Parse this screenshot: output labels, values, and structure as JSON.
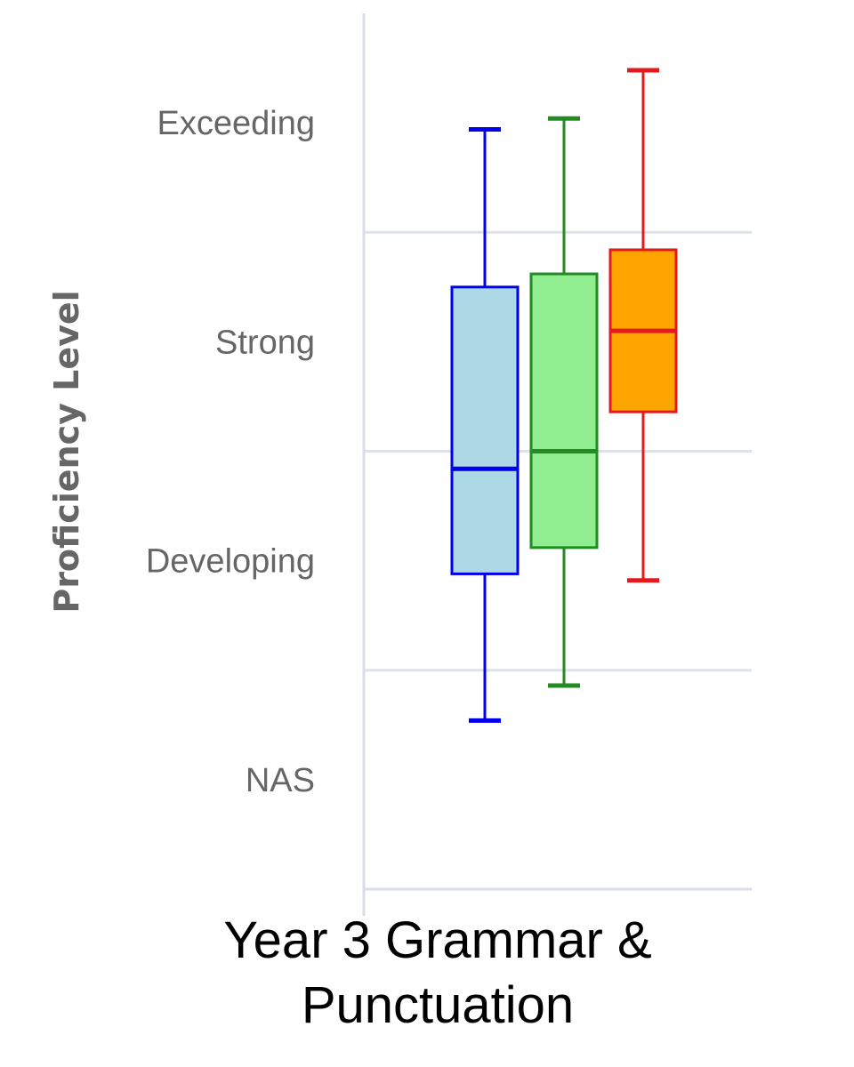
{
  "chart_data": {
    "type": "boxplot",
    "title_lines": [
      "Year 3 Grammar &",
      "Punctuation"
    ],
    "ylabel": "Proficiency Level",
    "y_categories": [
      "NAS",
      "Developing",
      "Strong",
      "Exceeding"
    ],
    "ylim": [
      0,
      4
    ],
    "gridlines": [
      1,
      2,
      3
    ],
    "series": [
      {
        "whisker_low": 0.77,
        "q1": 1.44,
        "median": 1.92,
        "q3": 2.75,
        "whisker_high": 3.47,
        "fill": "#add8e6",
        "stroke": "#0000ee"
      },
      {
        "whisker_low": 0.93,
        "q1": 1.56,
        "median": 2.0,
        "q3": 2.81,
        "whisker_high": 3.52,
        "fill": "#90ee90",
        "stroke": "#228b22"
      },
      {
        "whisker_low": 1.41,
        "q1": 2.18,
        "median": 2.55,
        "q3": 2.92,
        "whisker_high": 3.74,
        "fill": "#ffa500",
        "stroke": "#e31a1c"
      }
    ]
  }
}
